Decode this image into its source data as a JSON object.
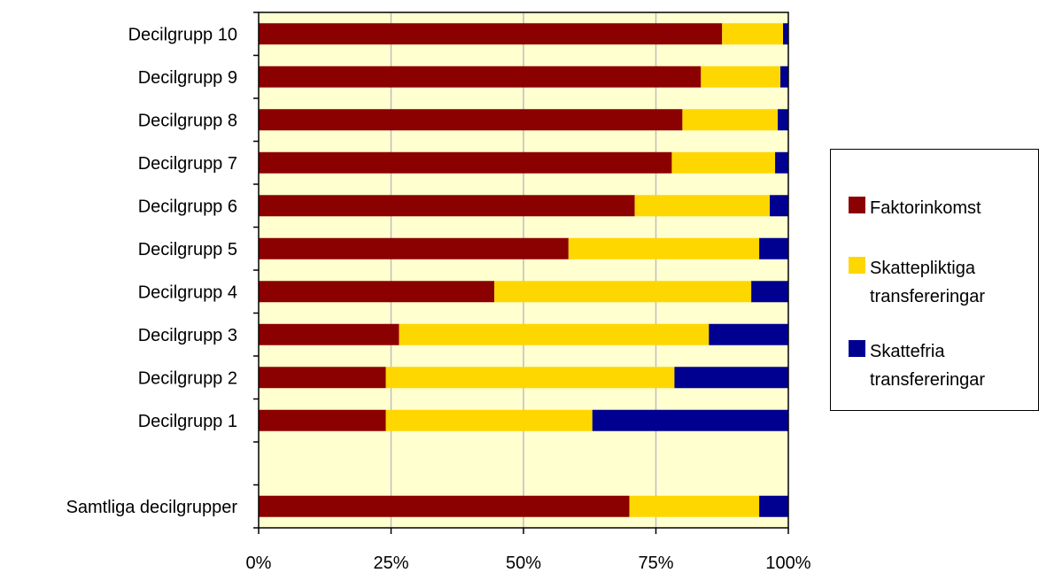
{
  "chart_data": {
    "type": "bar",
    "orientation": "horizontal",
    "stacked": "percent",
    "categories": [
      "Decilgrupp 10",
      "Decilgrupp 9",
      "Decilgrupp 8",
      "Decilgrupp 7",
      "Decilgrupp 6",
      "Decilgrupp 5",
      "Decilgrupp 4",
      "Decilgrupp 3",
      "Decilgrupp 2",
      "Decilgrupp 1",
      "",
      "Samtliga decilgrupper"
    ],
    "series": [
      {
        "name": "Faktorinkomst",
        "color": "#8B0000",
        "values": [
          87.5,
          83.5,
          80,
          78,
          71,
          58.5,
          44.5,
          26.5,
          24,
          24,
          null,
          70
        ]
      },
      {
        "name": "Skattepliktiga transfereringar",
        "color": "#FFD700",
        "values": [
          11.5,
          15,
          18,
          19.5,
          25.5,
          36,
          48.5,
          58.5,
          54.5,
          39,
          null,
          24.5
        ]
      },
      {
        "name": "Skattefria transfereringar",
        "color": "#000090",
        "values": [
          1,
          1.5,
          2,
          2.5,
          3.5,
          5.5,
          7,
          15,
          21.5,
          37,
          null,
          5.5
        ]
      }
    ],
    "xlim": [
      0,
      100
    ],
    "xticks": [
      "0%",
      "25%",
      "50%",
      "75%",
      "100%"
    ],
    "grid": true,
    "plot_background": "#FFFFD0",
    "gridline_color": "#BEBEBE",
    "legend_position": "right"
  }
}
